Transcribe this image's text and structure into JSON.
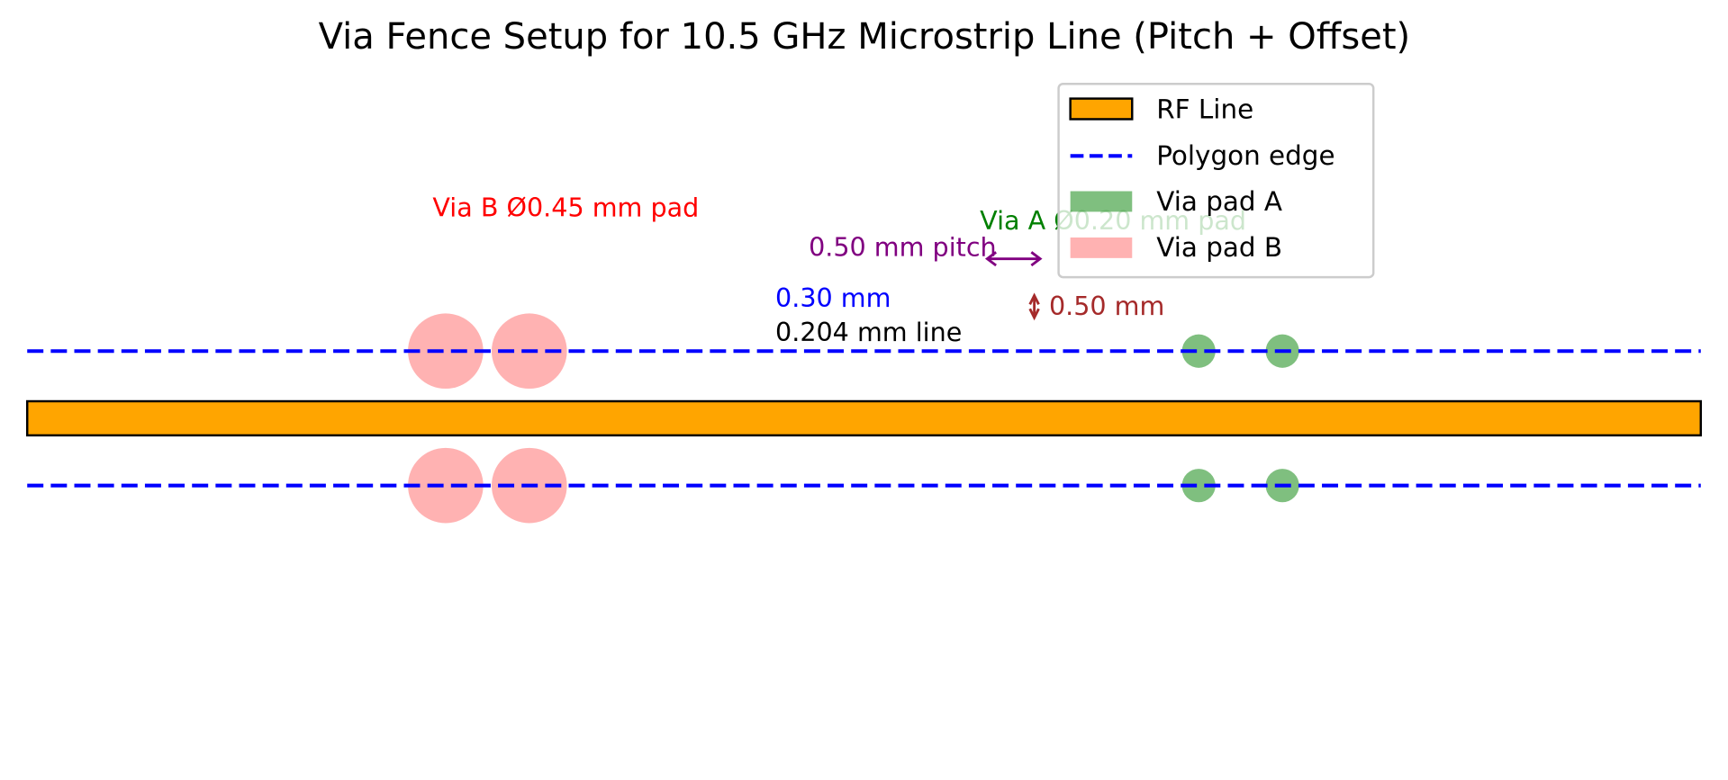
{
  "title": "Via Fence Setup for 10.5 GHz Microstrip Line (Pitch + Offset)",
  "colors": {
    "rf_line": "#FFA500",
    "polygon_edge": "#0000FF",
    "via_a": "#008000",
    "via_b": "#FF0000",
    "pitch": "#800080",
    "offset": "#A52A2A"
  },
  "chart_data": {
    "type": "diagram",
    "units": "mm",
    "xlim": [
      0,
      10
    ],
    "ylim": [
      -2,
      2
    ],
    "axes_visible": false,
    "rf_line": {
      "x": [
        0,
        10
      ],
      "width": 0.204
    },
    "polygon_edges_y": [
      0.402,
      -0.402
    ],
    "via_a": {
      "diameter": 0.2,
      "x": [
        7.0,
        7.5
      ],
      "y": [
        0.402,
        -0.402
      ]
    },
    "via_b": {
      "diameter": 0.45,
      "x": [
        2.5,
        3.0
      ],
      "y": [
        0.402,
        -0.402
      ]
    },
    "pitch": 0.5,
    "offset": 0.5,
    "gap": 0.3
  },
  "annotations": {
    "via_b_label": "Via B Ø0.45 mm pad",
    "via_a_label": "Via A Ø0.20 mm pad",
    "pitch_label": "0.50 mm pitch",
    "offset_label": "0.50 mm",
    "gap_label": "0.30 mm",
    "line_label": "0.204 mm line"
  },
  "legend": {
    "placement": "upper-right",
    "items": [
      {
        "label": "RF Line",
        "kind": "patch-edge"
      },
      {
        "label": "Polygon edge",
        "kind": "dashed-line"
      },
      {
        "label": "Via pad A",
        "kind": "patch-a"
      },
      {
        "label": "Via pad B",
        "kind": "patch-b"
      }
    ]
  }
}
